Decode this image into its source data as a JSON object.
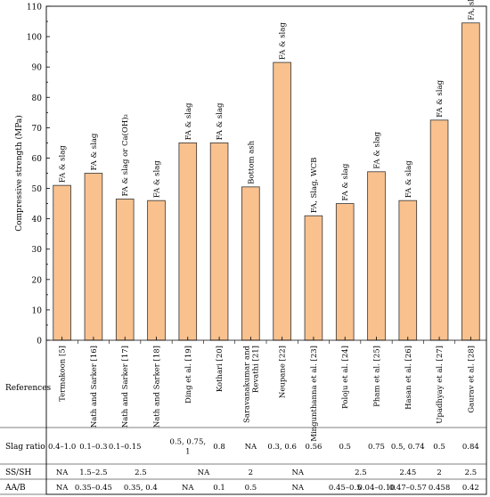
{
  "chart_data": {
    "type": "bar",
    "ylabel": "Compressive strength (MPa)",
    "ylim": [
      0,
      110
    ],
    "yticks": [
      0,
      10,
      20,
      30,
      40,
      50,
      60,
      70,
      80,
      90,
      100,
      110
    ],
    "grid": false,
    "categories": [
      "Termakoon [5]",
      "Nath and Sarker [16]",
      "Nath and Sarker [17]",
      "Nath and Sarker [18]",
      "Ding et al. [19]",
      "Kothari [20]",
      "Saravanakumar and Revathi  [21]",
      "Neupane [22]",
      "Mingunthanna et al. [23]",
      "Poloju et al. [24]",
      "Pham et al. [25]",
      "Hasan et al. [26]",
      "Upadhyay et al. [27]",
      "Gaurav et al. [28]"
    ],
    "values": [
      51,
      55,
      46.5,
      46,
      65,
      65,
      50.5,
      91.5,
      41,
      45,
      55.5,
      46,
      72.5,
      104.5
    ],
    "annotations": [
      "FA & slag",
      "FA & slag",
      "FA & slag or Ca(OH)₂",
      "FA & slag",
      "FA & slag",
      "FA & slag",
      "Bottom ash",
      "FA & slag",
      "FA, Slag, WCB",
      "FA & slag",
      "FA & slag",
      "FA & slag",
      "FA & slag",
      "FA, slag, silica fume"
    ],
    "references_label": "References",
    "table_rows": [
      {
        "label": "Slag ratio",
        "cells": [
          {
            "text": "0.4–1.0",
            "span": [
              0,
              0
            ]
          },
          {
            "text": "0.1–0.3",
            "span": [
              1,
              1
            ]
          },
          {
            "text": "0.1–0.15",
            "span": [
              2,
              2
            ]
          },
          {
            "text": "0.5, 0.75,",
            "text2": "1",
            "span": [
              4,
              4
            ]
          },
          {
            "text": "0.8",
            "span": [
              5,
              5
            ]
          },
          {
            "text": "NA",
            "span": [
              6,
              6
            ]
          },
          {
            "text": "0.3, 0.6",
            "span": [
              7,
              7
            ]
          },
          {
            "text": "0.56",
            "span": [
              8,
              8
            ]
          },
          {
            "text": "0.5",
            "span": [
              9,
              9
            ]
          },
          {
            "text": "0.75",
            "span": [
              10,
              10
            ]
          },
          {
            "text": "0.5, 0.74",
            "span": [
              11,
              11
            ]
          },
          {
            "text": "0.5",
            "span": [
              12,
              12
            ]
          },
          {
            "text": "0.84",
            "span": [
              13,
              13
            ]
          }
        ]
      },
      {
        "label": "SS/SH",
        "cells": [
          {
            "text": "NA",
            "span": [
              0,
              0
            ]
          },
          {
            "text": "1.5–2.5",
            "span": [
              1,
              1
            ]
          },
          {
            "text": "2.5",
            "span": [
              2,
              3
            ]
          },
          {
            "text": "NA",
            "span": [
              4,
              5
            ]
          },
          {
            "text": "2",
            "span": [
              6,
              6
            ]
          },
          {
            "text": "NA",
            "span": [
              7,
              8
            ]
          },
          {
            "text": "2.5",
            "span": [
              9,
              10
            ]
          },
          {
            "text": "2.45",
            "span": [
              11,
              11
            ]
          },
          {
            "text": "2",
            "span": [
              12,
              12
            ]
          },
          {
            "text": "2.5",
            "span": [
              13,
              13
            ]
          }
        ]
      },
      {
        "label": "AA/B",
        "cells": [
          {
            "text": "NA",
            "span": [
              0,
              0
            ]
          },
          {
            "text": "0.35–0.45",
            "span": [
              1,
              1
            ]
          },
          {
            "text": "0.35, 0.4",
            "span": [
              2,
              3
            ]
          },
          {
            "text": "NA",
            "span": [
              4,
              4
            ]
          },
          {
            "text": "0.1",
            "span": [
              5,
              5
            ]
          },
          {
            "text": "0.5",
            "span": [
              6,
              6
            ]
          },
          {
            "text": "NA",
            "span": [
              7,
              8
            ]
          },
          {
            "text": "0.45–0.5",
            "span": [
              9,
              9
            ]
          },
          {
            "text": "0.04–0.10",
            "span": [
              10,
              10
            ]
          },
          {
            "text": "0.47–0.57",
            "span": [
              11,
              11
            ]
          },
          {
            "text": "0.458",
            "span": [
              12,
              12
            ]
          },
          {
            "text": "0.42",
            "span": [
              13,
              13
            ]
          }
        ]
      }
    ]
  }
}
